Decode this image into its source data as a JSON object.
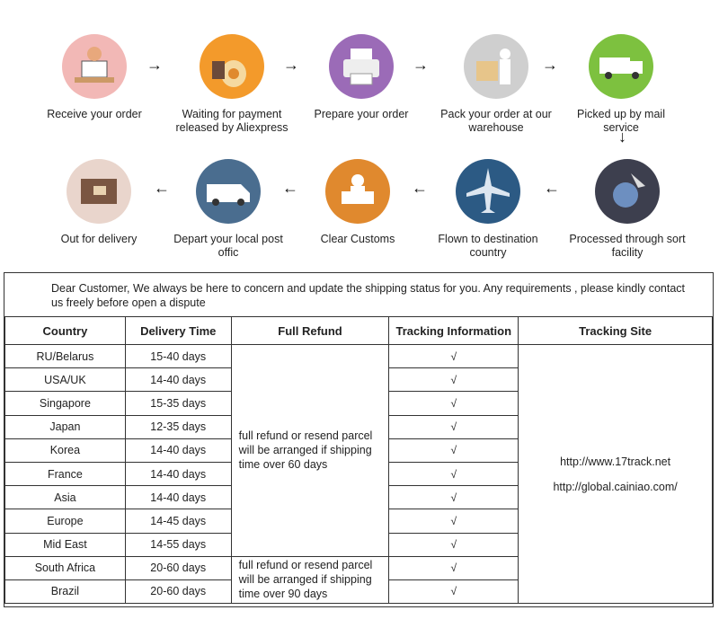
{
  "steps": [
    {
      "label": "Receive your order",
      "icon": "receive-order-icon"
    },
    {
      "label": "Waiting for payment released by Aliexpress",
      "icon": "payment-bag-icon"
    },
    {
      "label": "Prepare your order",
      "icon": "printer-icon"
    },
    {
      "label": "Pack your order at our warehouse",
      "icon": "pack-box-icon"
    },
    {
      "label": "Picked up by mail service",
      "icon": "truck-icon"
    },
    {
      "label": "Processed through sort facility",
      "icon": "globe-sort-icon"
    },
    {
      "label": "Flown to destination country",
      "icon": "airplane-icon"
    },
    {
      "label": "Clear  Customs",
      "icon": "customs-officer-icon"
    },
    {
      "label": "Depart your local post offic",
      "icon": "van-icon"
    },
    {
      "label": "Out for delivery",
      "icon": "parcel-icon"
    }
  ],
  "notice": "Dear Customer, We always be here to concern and update the shipping status for you.  Any requirements , please kindly contact us freely before open a dispute",
  "table": {
    "headers": [
      "Country",
      "Delivery Time",
      "Full Refund",
      "Tracking Information",
      "Tracking Site"
    ],
    "rows": [
      {
        "country": "RU/Belarus",
        "time": "15-40 days",
        "tracking": "√"
      },
      {
        "country": "USA/UK",
        "time": "14-40 days",
        "tracking": "√"
      },
      {
        "country": "Singapore",
        "time": "15-35 days",
        "tracking": "√"
      },
      {
        "country": "Japan",
        "time": "12-35 days",
        "tracking": "√"
      },
      {
        "country": "Korea",
        "time": "14-40 days",
        "tracking": "√"
      },
      {
        "country": "France",
        "time": "14-40 days",
        "tracking": "√"
      },
      {
        "country": "Asia",
        "time": "14-40 days",
        "tracking": "√"
      },
      {
        "country": "Europe",
        "time": "14-45 days",
        "tracking": "√"
      },
      {
        "country": "Mid East",
        "time": "14-55 days",
        "tracking": "√"
      },
      {
        "country": "South Africa",
        "time": "20-60 days",
        "tracking": "√"
      },
      {
        "country": "Brazil",
        "time": "20-60 days",
        "tracking": "√"
      }
    ],
    "refund_60": "full refund or resend parcel will be arranged if shipping time over 60 days",
    "refund_90": "full refund or resend parcel will be arranged if shipping time over 90 days",
    "sites": [
      "http://www.17track.net",
      "http://global.cainiao.com/"
    ]
  },
  "arrow_right": "→",
  "arrow_left": "←",
  "arrow_down": "↓"
}
